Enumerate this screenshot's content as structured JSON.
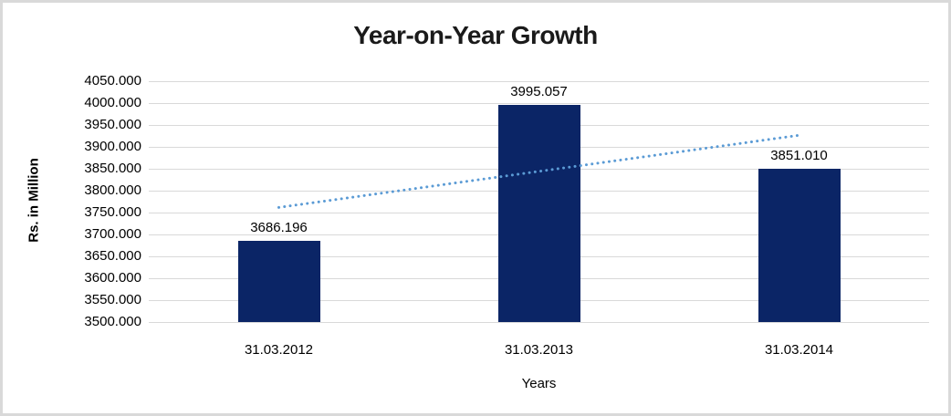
{
  "chart_data": {
    "type": "bar",
    "title": "Year-on-Year Growth",
    "categories": [
      "31.03.2012",
      "31.03.2013",
      "31.03.2014"
    ],
    "values": [
      3686.196,
      3995.057,
      3851.01
    ],
    "data_labels": [
      "3686.196",
      "3995.057",
      "3851.010"
    ],
    "xlabel": "Years",
    "ylabel": "Rs. in Million",
    "ylim": [
      3500,
      4050
    ],
    "ytick_step": 50,
    "ytick_decimals": 3,
    "grid": true,
    "legend": "none",
    "bar_color": "#0B2566",
    "gridline_color": "#D9D9D9",
    "title_color": "#1A1A1A",
    "frame_border_color": "#D9D9D9",
    "trendline": {
      "type": "linear",
      "style": "dotted",
      "color": "#5B9BD5"
    }
  }
}
